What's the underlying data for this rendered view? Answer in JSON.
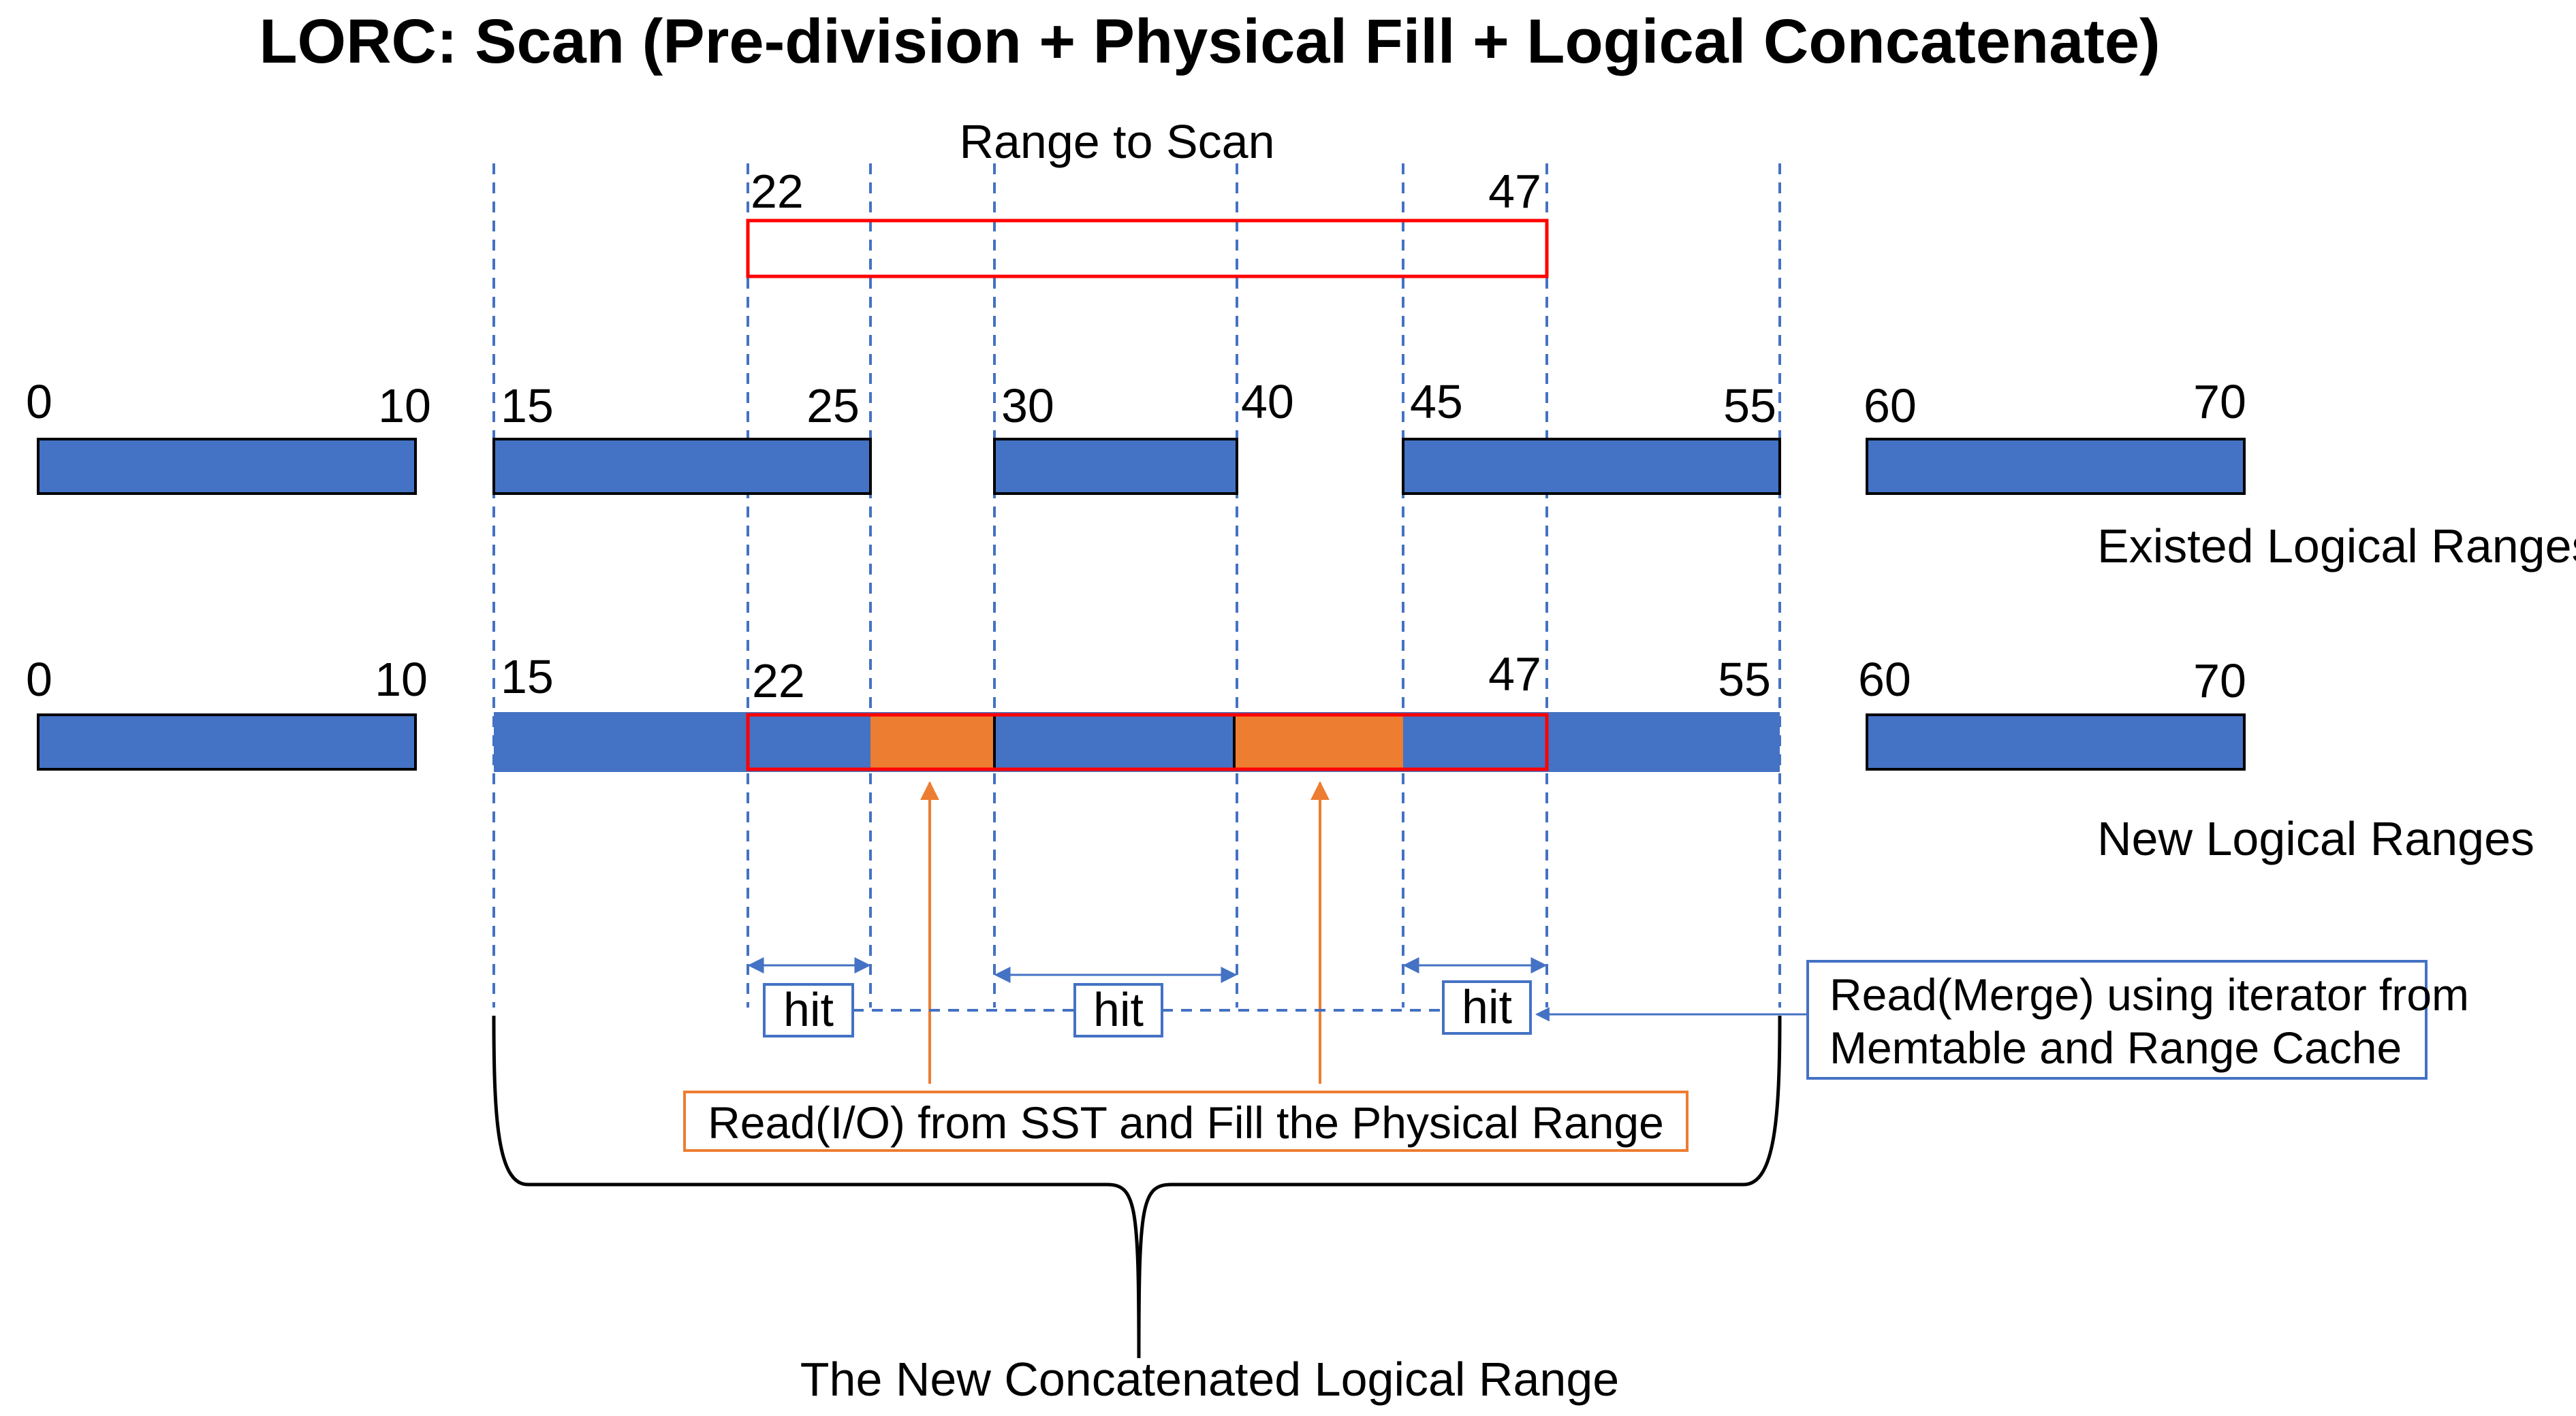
{
  "title": "LORC: Scan (Pre-division + Physical Fill + Logical Concatenate)",
  "range_to_scan": {
    "label": "Range to Scan",
    "start": "22",
    "end": "47"
  },
  "existed_logical_ranges": {
    "label": "Existed Logical Ranges",
    "ranges": [
      {
        "start": "0",
        "end": "10"
      },
      {
        "start": "15",
        "end": "25"
      },
      {
        "start": "30",
        "end": "40"
      },
      {
        "start": "45",
        "end": "55"
      },
      {
        "start": "60",
        "end": "70"
      }
    ]
  },
  "new_logical_ranges": {
    "label": "New Logical Ranges",
    "ticks": [
      "0",
      "10",
      "15",
      "22",
      "47",
      "55",
      "60",
      "70"
    ]
  },
  "hits": [
    "hit",
    "hit",
    "hit"
  ],
  "io_callout": "Read(I/O) from SST and Fill the Physical Range",
  "merge_callout": {
    "line1": "Read(Merge) using iterator from",
    "line2": "Memtable and Range Cache"
  },
  "concatenated_label": "The New Concatenated Logical Range",
  "colors": {
    "blue": "#4472C4",
    "orange": "#ED7D31",
    "red": "#FF0000",
    "dash_blue": "#4472C4"
  }
}
